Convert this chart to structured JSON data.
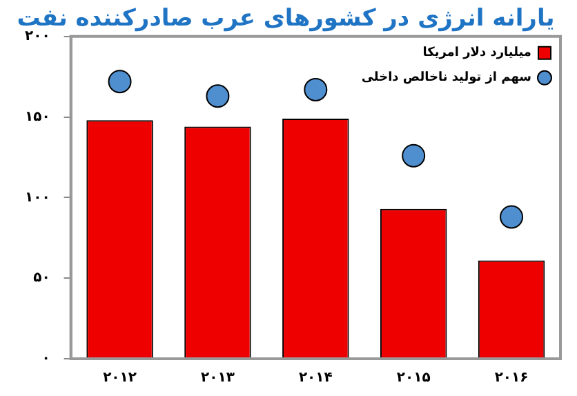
{
  "chart_data": {
    "type": "bar",
    "title": "یارانه انرژی در کشورهای عرب صادرکننده نفت",
    "categories": [
      "۲۰۱۲",
      "۲۰۱۳",
      "۲۰۱۴",
      "۲۰۱۵",
      "۲۰۱۶"
    ],
    "series": [
      {
        "name": "میلیارد دلار امریکا",
        "color": "#ee0000",
        "values": [
          148,
          144,
          149,
          93,
          61
        ]
      },
      {
        "name": "سهم از تولید ناخالص داخلی",
        "type": "scatter",
        "color": "#4f8fd0",
        "marker": "circle",
        "values": [
          172,
          163,
          167,
          126,
          88
        ]
      }
    ],
    "ylim": [
      0,
      200
    ],
    "yticks": [
      {
        "value": 0,
        "label": "۰"
      },
      {
        "value": 50,
        "label": "۵۰"
      },
      {
        "value": 100,
        "label": "۱۰۰"
      },
      {
        "value": 150,
        "label": "۱۵۰"
      },
      {
        "value": 200,
        "label": "۲۰۰"
      }
    ],
    "grid": false,
    "legend": "top right"
  }
}
